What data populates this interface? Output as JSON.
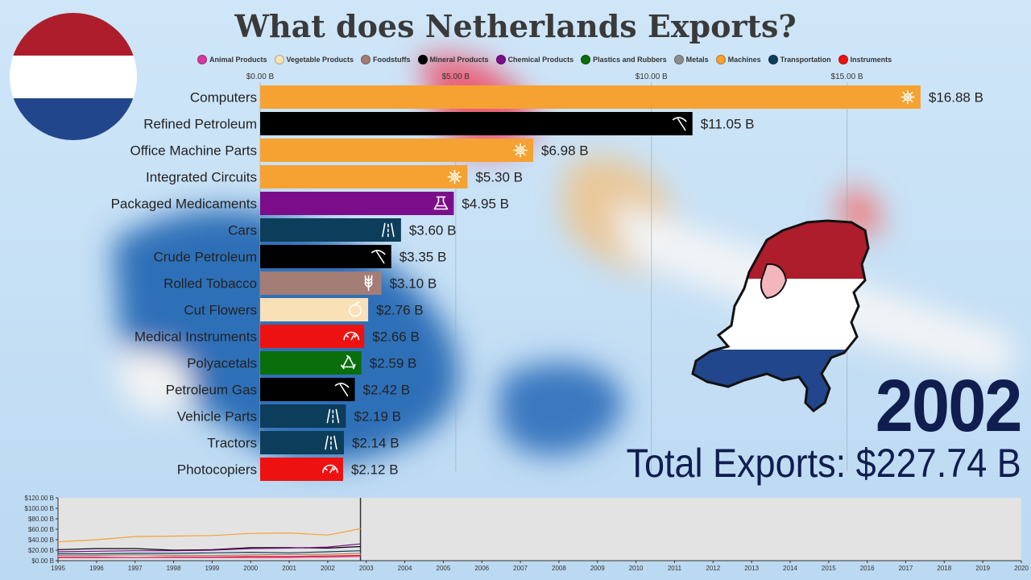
{
  "chart_data": {
    "type": "bar",
    "title": "What does Netherlands Exports?",
    "year": "2002",
    "total_label": "Total Exports: $227.74 B",
    "legend": [
      {
        "name": "Animal Products",
        "color": "#d63a9a"
      },
      {
        "name": "Vegetable Products",
        "color": "#f9e0b6"
      },
      {
        "name": "Foodstuffs",
        "color": "#a47d76"
      },
      {
        "name": "Mineral Products",
        "color": "#000000"
      },
      {
        "name": "Chemical Products",
        "color": "#7b0d8a"
      },
      {
        "name": "Plastics and Rubbers",
        "color": "#0a6e0a"
      },
      {
        "name": "Metals",
        "color": "#8c8c8c"
      },
      {
        "name": "Machines",
        "color": "#f5a232"
      },
      {
        "name": "Transportation",
        "color": "#0c3d5b"
      },
      {
        "name": "Instruments",
        "color": "#ee1111"
      }
    ],
    "x_ticks": [
      "$0.00 B",
      "$5.00 B",
      "$10.00 B",
      "$15.00 B"
    ],
    "x_tick_values": [
      0,
      5,
      10,
      15
    ],
    "xlim": [
      0,
      17.5
    ],
    "bars": [
      {
        "category": "Computers",
        "value": 16.88,
        "label": "$16.88 B",
        "group": "Machines",
        "icon": "gear-icon"
      },
      {
        "category": "Refined Petroleum",
        "value": 11.05,
        "label": "$11.05 B",
        "group": "Mineral Products",
        "icon": "pickaxe-icon"
      },
      {
        "category": "Office Machine Parts",
        "value": 6.98,
        "label": "$6.98 B",
        "group": "Machines",
        "icon": "gear-icon"
      },
      {
        "category": "Integrated Circuits",
        "value": 5.3,
        "label": "$5.30 B",
        "group": "Machines",
        "icon": "gear-icon"
      },
      {
        "category": "Packaged Medicaments",
        "value": 4.95,
        "label": "$4.95 B",
        "group": "Chemical Products",
        "icon": "flask-icon"
      },
      {
        "category": "Cars",
        "value": 3.6,
        "label": "$3.60 B",
        "group": "Transportation",
        "icon": "road-icon"
      },
      {
        "category": "Crude Petroleum",
        "value": 3.35,
        "label": "$3.35 B",
        "group": "Mineral Products",
        "icon": "pickaxe-icon"
      },
      {
        "category": "Rolled Tobacco",
        "value": 3.1,
        "label": "$3.10 B",
        "group": "Foodstuffs",
        "icon": "wheat-icon"
      },
      {
        "category": "Cut Flowers",
        "value": 2.76,
        "label": "$2.76 B",
        "group": "Vegetable Products",
        "icon": "apple-icon"
      },
      {
        "category": "Medical Instruments",
        "value": 2.66,
        "label": "$2.66 B",
        "group": "Instruments",
        "icon": "gauge-icon"
      },
      {
        "category": "Polyacetals",
        "value": 2.59,
        "label": "$2.59 B",
        "group": "Plastics and Rubbers",
        "icon": "recycle-icon"
      },
      {
        "category": "Petroleum Gas",
        "value": 2.42,
        "label": "$2.42 B",
        "group": "Mineral Products",
        "icon": "pickaxe-icon"
      },
      {
        "category": "Vehicle Parts",
        "value": 2.19,
        "label": "$2.19 B",
        "group": "Transportation",
        "icon": "road-icon"
      },
      {
        "category": "Tractors",
        "value": 2.14,
        "label": "$2.14 B",
        "group": "Transportation",
        "icon": "road-icon"
      },
      {
        "category": "Photocopiers",
        "value": 2.12,
        "label": "$2.12 B",
        "group": "Instruments",
        "icon": "gauge-icon"
      }
    ],
    "timeline": {
      "type": "line",
      "y_ticks": [
        "$0.00 B",
        "$20.00 B",
        "$40.00 B",
        "$60.00 B",
        "$80.00 B",
        "$100.00 B",
        "$120.00 B"
      ],
      "y_tick_values": [
        0,
        20,
        40,
        60,
        80,
        100,
        120
      ],
      "ylim": [
        0,
        120
      ],
      "x_years": [
        "1995",
        "1996",
        "1997",
        "1998",
        "1999",
        "2000",
        "2001",
        "2002",
        "2003",
        "2004",
        "2005",
        "2006",
        "2007",
        "2008",
        "2009",
        "2010",
        "2011",
        "2012",
        "2013",
        "2014",
        "2015",
        "2016",
        "2017",
        "2018",
        "2019",
        "2020"
      ],
      "x_range": [
        1995,
        2020
      ],
      "current_year": 2002.85,
      "series": [
        {
          "group": "Machines",
          "x": [
            1995,
            1996,
            1997,
            1998,
            1999,
            2000,
            2001,
            2002,
            2002.85
          ],
          "y": [
            36,
            40,
            46,
            47,
            48,
            52,
            53,
            49,
            61
          ]
        },
        {
          "group": "Mineral Products",
          "x": [
            1995,
            1996,
            1997,
            1998,
            1999,
            2000,
            2001,
            2002,
            2002.85
          ],
          "y": [
            21,
            23,
            23,
            20,
            21,
            25,
            25,
            24,
            27
          ]
        },
        {
          "group": "Chemical Products",
          "x": [
            1995,
            1996,
            1997,
            1998,
            1999,
            2000,
            2001,
            2002,
            2002.85
          ],
          "y": [
            17,
            18,
            19,
            19,
            20,
            23,
            24,
            26,
            32
          ]
        },
        {
          "group": "Transportation",
          "x": [
            1995,
            1996,
            1997,
            1998,
            1999,
            2000,
            2001,
            2002,
            2002.85
          ],
          "y": [
            13,
            13,
            14,
            14,
            15,
            16,
            15,
            17,
            19
          ]
        },
        {
          "group": "Foodstuffs",
          "x": [
            1995,
            1996,
            1997,
            1998,
            1999,
            2000,
            2001,
            2002,
            2002.85
          ],
          "y": [
            10,
            10,
            11,
            10,
            10,
            11,
            12,
            12,
            14
          ]
        },
        {
          "group": "Vegetable Products",
          "x": [
            1995,
            1996,
            1997,
            1998,
            1999,
            2000,
            2001,
            2002,
            2002.85
          ],
          "y": [
            8,
            8,
            9,
            8,
            8,
            9,
            9,
            10,
            12
          ]
        },
        {
          "group": "Instruments",
          "x": [
            1995,
            1996,
            1997,
            1998,
            1999,
            2000,
            2001,
            2002,
            2002.85
          ],
          "y": [
            6,
            6,
            6,
            7,
            7,
            8,
            8,
            9,
            10
          ]
        },
        {
          "group": "Animal Products",
          "x": [
            1995,
            1996,
            1997,
            1998,
            1999,
            2000,
            2001,
            2002,
            2002.85
          ],
          "y": [
            7,
            7,
            6,
            6,
            6,
            6,
            6,
            7,
            8
          ]
        }
      ]
    }
  }
}
